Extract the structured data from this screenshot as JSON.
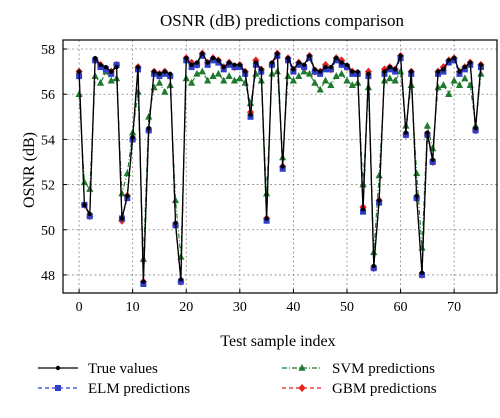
{
  "chart_data": {
    "type": "line",
    "title": "OSNR (dB) predictions comparison",
    "xlabel": "Test sample index",
    "ylabel": "OSNR (dB)",
    "xlim": [
      -3,
      78
    ],
    "ylim": [
      47.2,
      58.4
    ],
    "xticks": [
      0,
      10,
      20,
      30,
      40,
      50,
      60,
      70
    ],
    "yticks": [
      48,
      50,
      52,
      54,
      56,
      58
    ],
    "grid": true,
    "legend_position": "bottom",
    "x": [
      0,
      1,
      2,
      3,
      4,
      5,
      6,
      7,
      8,
      9,
      10,
      11,
      12,
      13,
      14,
      15,
      16,
      17,
      18,
      19,
      20,
      21,
      22,
      23,
      24,
      25,
      26,
      27,
      28,
      29,
      30,
      31,
      32,
      33,
      34,
      35,
      36,
      37,
      38,
      39,
      40,
      41,
      42,
      43,
      44,
      45,
      46,
      47,
      48,
      49,
      50,
      51,
      52,
      53,
      54,
      55,
      56,
      57,
      58,
      59,
      60,
      61,
      62,
      63,
      64,
      65,
      66,
      67,
      68,
      69,
      70,
      71,
      72,
      73,
      74,
      75
    ],
    "series": [
      {
        "name": "True values",
        "color": "#000000",
        "marker": "circle",
        "line": "solid",
        "values": [
          57.0,
          51.1,
          50.7,
          57.6,
          57.3,
          57.2,
          57.0,
          57.2,
          50.5,
          51.5,
          54.1,
          57.2,
          47.7,
          54.5,
          57.0,
          56.9,
          57.0,
          56.9,
          50.3,
          47.8,
          57.6,
          57.3,
          57.4,
          57.8,
          57.4,
          57.6,
          57.5,
          57.2,
          57.4,
          57.3,
          57.3,
          57.0,
          55.1,
          57.4,
          57.1,
          50.5,
          57.4,
          57.8,
          52.8,
          57.6,
          57.1,
          57.4,
          57.3,
          57.7,
          57.1,
          57.0,
          57.2,
          57.2,
          57.6,
          57.4,
          57.3,
          57.0,
          57.0,
          50.9,
          56.9,
          48.4,
          51.3,
          57.0,
          57.2,
          57.1,
          57.7,
          54.3,
          57.0,
          51.5,
          48.1,
          54.3,
          53.1,
          57.0,
          57.1,
          57.5,
          57.6,
          57.0,
          57.2,
          57.4,
          54.5,
          57.3
        ]
      },
      {
        "name": "ELM predictions",
        "color": "#2f3fc7",
        "marker": "square",
        "line": "dashed",
        "values": [
          56.8,
          51.1,
          50.6,
          57.5,
          57.2,
          57.1,
          56.9,
          57.3,
          50.5,
          51.4,
          54.0,
          57.1,
          47.6,
          54.4,
          56.9,
          56.8,
          56.9,
          56.8,
          50.2,
          47.7,
          57.5,
          57.2,
          57.3,
          57.7,
          57.3,
          57.5,
          57.4,
          57.1,
          57.3,
          57.2,
          57.2,
          56.9,
          55.0,
          57.3,
          57.0,
          50.4,
          57.3,
          57.7,
          52.7,
          57.5,
          57.0,
          57.3,
          57.2,
          57.6,
          57.0,
          56.9,
          57.1,
          57.1,
          57.5,
          57.3,
          57.2,
          56.9,
          56.9,
          50.8,
          56.8,
          48.3,
          51.2,
          56.9,
          57.1,
          57.0,
          57.6,
          54.2,
          56.9,
          51.4,
          48.0,
          54.2,
          53.0,
          56.9,
          57.0,
          57.4,
          57.5,
          56.9,
          57.1,
          57.3,
          54.4,
          57.2
        ]
      },
      {
        "name": "SVM predictions",
        "color": "#1f7a2e",
        "marker": "triangle",
        "line": "dashdot",
        "values": [
          56.0,
          52.1,
          51.8,
          56.8,
          56.5,
          57.0,
          56.6,
          56.7,
          51.6,
          52.5,
          54.3,
          56.1,
          48.7,
          55.0,
          56.3,
          56.5,
          56.1,
          56.4,
          51.3,
          48.8,
          56.7,
          56.5,
          56.9,
          57.0,
          56.6,
          56.8,
          56.9,
          56.6,
          56.8,
          56.6,
          56.7,
          56.5,
          55.6,
          56.9,
          56.6,
          51.6,
          56.9,
          57.0,
          53.2,
          56.8,
          56.6,
          56.8,
          57.0,
          56.9,
          56.5,
          56.2,
          56.6,
          56.4,
          56.8,
          56.9,
          56.6,
          56.4,
          56.5,
          52.0,
          56.3,
          49.0,
          52.4,
          56.6,
          56.7,
          56.6,
          57.0,
          54.6,
          56.4,
          52.5,
          49.2,
          54.6,
          53.6,
          56.3,
          56.4,
          56.0,
          56.6,
          56.4,
          56.7,
          56.4,
          54.6,
          56.9
        ]
      },
      {
        "name": "GBM predictions",
        "color": "#e8211d",
        "marker": "diamond",
        "line": "dashed",
        "values": [
          57.0,
          51.1,
          50.6,
          57.5,
          57.3,
          57.1,
          57.0,
          57.3,
          50.4,
          51.5,
          54.0,
          57.2,
          47.7,
          54.4,
          57.0,
          56.9,
          57.0,
          56.8,
          50.2,
          47.7,
          57.6,
          57.4,
          57.3,
          57.8,
          57.4,
          57.6,
          57.5,
          57.2,
          57.4,
          57.2,
          57.3,
          57.0,
          55.2,
          57.5,
          57.1,
          50.5,
          57.3,
          57.8,
          52.8,
          57.6,
          57.1,
          57.4,
          57.2,
          57.7,
          57.0,
          57.0,
          57.3,
          57.1,
          57.6,
          57.5,
          57.2,
          57.0,
          56.9,
          51.0,
          57.0,
          48.3,
          51.3,
          57.1,
          57.2,
          57.1,
          57.7,
          54.2,
          57.0,
          51.4,
          48.0,
          54.2,
          53.0,
          57.0,
          57.2,
          57.5,
          57.6,
          57.0,
          57.2,
          57.4,
          54.4,
          57.3
        ]
      }
    ]
  }
}
